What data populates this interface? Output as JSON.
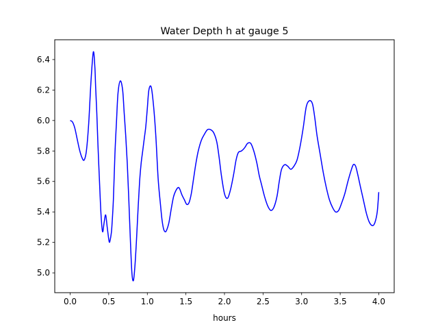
{
  "chart_data": {
    "type": "line",
    "title": "Water Depth h at gauge 5",
    "xlabel": "hours",
    "ylabel": "",
    "xlim": [
      -0.2,
      4.2
    ],
    "ylim": [
      4.87,
      6.53
    ],
    "xticks": [
      0.0,
      0.5,
      1.0,
      1.5,
      2.0,
      2.5,
      3.0,
      3.5,
      4.0
    ],
    "xtick_labels": [
      "0.0",
      "0.5",
      "1.0",
      "1.5",
      "2.0",
      "2.5",
      "3.0",
      "3.5",
      "4.0"
    ],
    "yticks": [
      5.0,
      5.2,
      5.4,
      5.6,
      5.8,
      6.0,
      6.2,
      6.4
    ],
    "ytick_labels": [
      "5.0",
      "5.2",
      "5.4",
      "5.6",
      "5.8",
      "6.0",
      "6.2",
      "6.4"
    ],
    "grid": false,
    "series": [
      {
        "name": "",
        "color": "#0000ff",
        "x": [
          0.0,
          0.03,
          0.06,
          0.09,
          0.12,
          0.15,
          0.18,
          0.21,
          0.24,
          0.27,
          0.3,
          0.32,
          0.33,
          0.345,
          0.36,
          0.38,
          0.4,
          0.42,
          0.44,
          0.46,
          0.48,
          0.5,
          0.51,
          0.52,
          0.53,
          0.54,
          0.56,
          0.58,
          0.6,
          0.62,
          0.65,
          0.68,
          0.7,
          0.72,
          0.74,
          0.76,
          0.78,
          0.8,
          0.82,
          0.84,
          0.86,
          0.88,
          0.9,
          0.92,
          0.94,
          0.96,
          0.98,
          1.0,
          1.02,
          1.05,
          1.08,
          1.11,
          1.14,
          1.17,
          1.19,
          1.21,
          1.23,
          1.25,
          1.28,
          1.31,
          1.34,
          1.37,
          1.4,
          1.42,
          1.45,
          1.48,
          1.51,
          1.54,
          1.57,
          1.6,
          1.63,
          1.66,
          1.7,
          1.74,
          1.78,
          1.82,
          1.86,
          1.9,
          1.93,
          1.96,
          2.0,
          2.04,
          2.08,
          2.12,
          2.15,
          2.18,
          2.22,
          2.26,
          2.3,
          2.34,
          2.38,
          2.42,
          2.45,
          2.48,
          2.52,
          2.56,
          2.6,
          2.64,
          2.68,
          2.71,
          2.74,
          2.78,
          2.82,
          2.86,
          2.9,
          2.94,
          2.98,
          3.02,
          3.06,
          3.1,
          3.14,
          3.17,
          3.2,
          3.24,
          3.28,
          3.32,
          3.36,
          3.4,
          3.44,
          3.48,
          3.52,
          3.56,
          3.6,
          3.64,
          3.67,
          3.7,
          3.73,
          3.76,
          3.8,
          3.84,
          3.88,
          3.92,
          3.95,
          3.98,
          4.0
        ],
        "y": [
          6.0,
          5.99,
          5.95,
          5.88,
          5.81,
          5.76,
          5.74,
          5.8,
          5.98,
          6.26,
          6.45,
          6.35,
          6.22,
          6.05,
          5.84,
          5.6,
          5.38,
          5.27,
          5.33,
          5.38,
          5.3,
          5.22,
          5.2,
          5.22,
          5.25,
          5.3,
          5.48,
          5.78,
          5.99,
          6.18,
          6.26,
          6.2,
          6.05,
          5.9,
          5.72,
          5.48,
          5.22,
          5.0,
          4.95,
          5.05,
          5.22,
          5.42,
          5.6,
          5.72,
          5.8,
          5.88,
          5.96,
          6.08,
          6.2,
          6.22,
          6.1,
          5.9,
          5.62,
          5.45,
          5.35,
          5.29,
          5.27,
          5.28,
          5.33,
          5.42,
          5.5,
          5.54,
          5.56,
          5.55,
          5.51,
          5.48,
          5.45,
          5.46,
          5.52,
          5.62,
          5.72,
          5.8,
          5.87,
          5.91,
          5.94,
          5.94,
          5.92,
          5.86,
          5.76,
          5.64,
          5.52,
          5.49,
          5.55,
          5.65,
          5.74,
          5.79,
          5.8,
          5.82,
          5.85,
          5.85,
          5.8,
          5.72,
          5.64,
          5.58,
          5.5,
          5.44,
          5.41,
          5.43,
          5.5,
          5.6,
          5.68,
          5.71,
          5.7,
          5.68,
          5.7,
          5.74,
          5.83,
          5.95,
          6.09,
          6.13,
          6.11,
          6.02,
          5.9,
          5.78,
          5.66,
          5.56,
          5.48,
          5.43,
          5.4,
          5.41,
          5.46,
          5.52,
          5.6,
          5.67,
          5.71,
          5.7,
          5.64,
          5.57,
          5.48,
          5.39,
          5.33,
          5.31,
          5.33,
          5.4,
          5.53
        ],
        "line_width": 1.5
      }
    ]
  }
}
